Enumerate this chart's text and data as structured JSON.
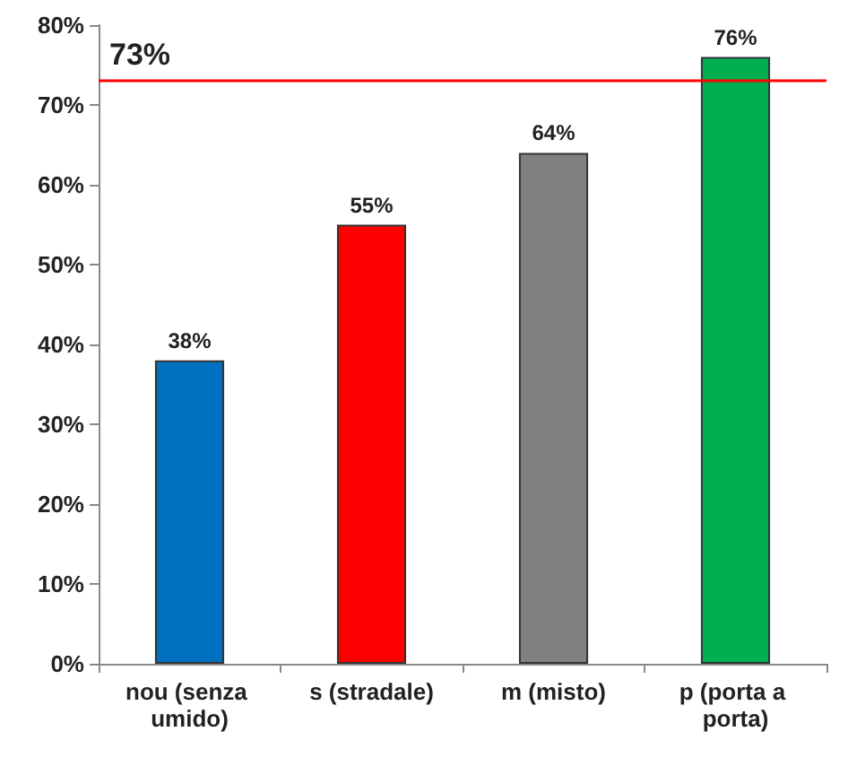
{
  "chart_data": {
    "type": "bar",
    "categories": [
      "nou (senza umido)",
      "s (stradale)",
      "m (misto)",
      "p (porta a porta)"
    ],
    "values": [
      38,
      55,
      64,
      76
    ],
    "colors": [
      "#0070c0",
      "#ff0000",
      "#808080",
      "#00b050"
    ],
    "value_labels": [
      "38%",
      "55%",
      "64%",
      "76%"
    ],
    "ylim": [
      0,
      80
    ],
    "yticks": [
      {
        "value": 0,
        "label": "0%"
      },
      {
        "value": 10,
        "label": "10%"
      },
      {
        "value": 20,
        "label": "20%"
      },
      {
        "value": 30,
        "label": "30%"
      },
      {
        "value": 40,
        "label": "40%"
      },
      {
        "value": 50,
        "label": "50%"
      },
      {
        "value": 60,
        "label": "60%"
      },
      {
        "value": 70,
        "label": "70%"
      },
      {
        "value": 80,
        "label": "80%"
      }
    ],
    "ref_lines": [
      {
        "axis": "y",
        "value": 73,
        "label": "73%",
        "color": "#ff0000"
      }
    ],
    "grid": false
  }
}
